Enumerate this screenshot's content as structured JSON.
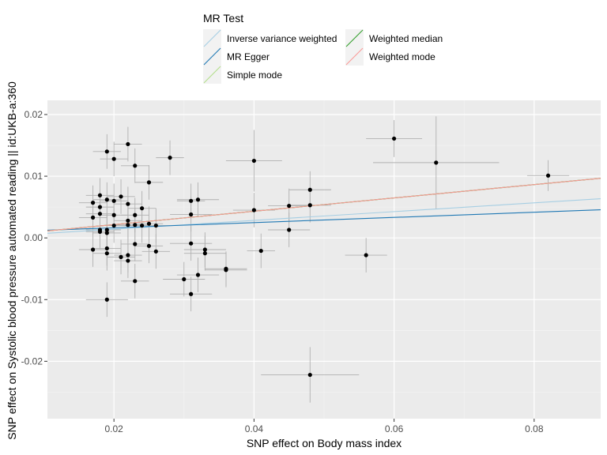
{
  "chart_data": {
    "type": "scatter",
    "xlabel": "SNP effect on Body mass index",
    "ylabel": "SNP effect on Systolic blood pressure  automated reading || id:UKB-a:360",
    "xlim": [
      0.0105,
      0.0895
    ],
    "ylim": [
      -0.0293,
      0.0223
    ],
    "xticks": [
      0.02,
      0.04,
      0.06,
      0.08
    ],
    "yticks": [
      -0.02,
      -0.01,
      0.0,
      0.01,
      0.02
    ],
    "xtick_labels": [
      "0.02",
      "0.04",
      "0.06",
      "0.08"
    ],
    "ytick_labels": [
      "-0.02",
      "-0.01",
      "0.00",
      "0.01",
      "0.02"
    ],
    "grid": true,
    "legend": {
      "title": "MR Test",
      "position": "top",
      "entries": [
        {
          "label": "Inverse variance weighted",
          "color": "#a6cee3"
        },
        {
          "label": "MR Egger",
          "color": "#1f78b4"
        },
        {
          "label": "Simple mode",
          "color": "#b2df8a"
        },
        {
          "label": "Weighted median",
          "color": "#33a02c"
        },
        {
          "label": "Weighted mode",
          "color": "#fb9a99"
        }
      ]
    },
    "lines": [
      {
        "name": "Inverse variance weighted",
        "color": "#a6cee3",
        "intercept": 0.0,
        "slope": 0.071
      },
      {
        "name": "MR Egger",
        "color": "#1f78b4",
        "intercept": 0.0008,
        "slope": 0.042
      },
      {
        "name": "Simple mode",
        "color": "#b2df8a",
        "intercept": 0.0,
        "slope": 0.108
      },
      {
        "name": "Weighted median",
        "color": "#33a02c",
        "intercept": 0.0,
        "slope": 0.108
      },
      {
        "name": "Weighted mode",
        "color": "#fb9a99",
        "intercept": 0.0,
        "slope": 0.108
      }
    ],
    "points": [
      {
        "x": 0.017,
        "y": 0.0057,
        "xerr": 0.002,
        "yerr": 0.0028
      },
      {
        "x": 0.017,
        "y": 0.0033,
        "xerr": 0.002,
        "yerr": 0.0028
      },
      {
        "x": 0.017,
        "y": -0.0019,
        "xerr": 0.002,
        "yerr": 0.0028
      },
      {
        "x": 0.018,
        "y": 0.0069,
        "xerr": 0.002,
        "yerr": 0.0028
      },
      {
        "x": 0.018,
        "y": 0.005,
        "xerr": 0.002,
        "yerr": 0.0028
      },
      {
        "x": 0.018,
        "y": 0.0039,
        "xerr": 0.002,
        "yerr": 0.0028
      },
      {
        "x": 0.018,
        "y": 0.0013,
        "xerr": 0.002,
        "yerr": 0.0028
      },
      {
        "x": 0.018,
        "y": 0.001,
        "xerr": 0.002,
        "yerr": 0.0028
      },
      {
        "x": 0.019,
        "y": 0.014,
        "xerr": 0.002,
        "yerr": 0.0028
      },
      {
        "x": 0.019,
        "y": 0.0062,
        "xerr": 0.002,
        "yerr": 0.0028
      },
      {
        "x": 0.019,
        "y": 0.0013,
        "xerr": 0.002,
        "yerr": 0.0028
      },
      {
        "x": 0.019,
        "y": 0.0008,
        "xerr": 0.002,
        "yerr": 0.0028
      },
      {
        "x": 0.019,
        "y": -0.0017,
        "xerr": 0.002,
        "yerr": 0.0028
      },
      {
        "x": 0.019,
        "y": -0.0025,
        "xerr": 0.002,
        "yerr": 0.0028
      },
      {
        "x": 0.019,
        "y": -0.01,
        "xerr": 0.003,
        "yerr": 0.0028
      },
      {
        "x": 0.02,
        "y": 0.0128,
        "xerr": 0.002,
        "yerr": 0.0028
      },
      {
        "x": 0.02,
        "y": 0.006,
        "xerr": 0.002,
        "yerr": 0.0028
      },
      {
        "x": 0.02,
        "y": 0.0037,
        "xerr": 0.002,
        "yerr": 0.0028
      },
      {
        "x": 0.02,
        "y": 0.002,
        "xerr": 0.002,
        "yerr": 0.0028
      },
      {
        "x": 0.021,
        "y": 0.0067,
        "xerr": 0.002,
        "yerr": 0.0028
      },
      {
        "x": 0.021,
        "y": -0.0031,
        "xerr": 0.002,
        "yerr": 0.0028
      },
      {
        "x": 0.022,
        "y": 0.0152,
        "xerr": 0.002,
        "yerr": 0.0028
      },
      {
        "x": 0.022,
        "y": 0.0055,
        "xerr": 0.002,
        "yerr": 0.0028
      },
      {
        "x": 0.022,
        "y": 0.0028,
        "xerr": 0.002,
        "yerr": 0.0028
      },
      {
        "x": 0.022,
        "y": 0.0021,
        "xerr": 0.002,
        "yerr": 0.0028
      },
      {
        "x": 0.022,
        "y": -0.0028,
        "xerr": 0.002,
        "yerr": 0.0028
      },
      {
        "x": 0.022,
        "y": -0.0037,
        "xerr": 0.002,
        "yerr": 0.0028
      },
      {
        "x": 0.023,
        "y": 0.0117,
        "xerr": 0.002,
        "yerr": 0.0028
      },
      {
        "x": 0.023,
        "y": 0.0037,
        "xerr": 0.002,
        "yerr": 0.0028
      },
      {
        "x": 0.023,
        "y": 0.0021,
        "xerr": 0.002,
        "yerr": 0.0028
      },
      {
        "x": 0.023,
        "y": -0.001,
        "xerr": 0.002,
        "yerr": 0.0028
      },
      {
        "x": 0.023,
        "y": -0.007,
        "xerr": 0.002,
        "yerr": 0.0028
      },
      {
        "x": 0.024,
        "y": 0.0048,
        "xerr": 0.002,
        "yerr": 0.0028
      },
      {
        "x": 0.024,
        "y": 0.002,
        "xerr": 0.002,
        "yerr": 0.0028
      },
      {
        "x": 0.025,
        "y": 0.009,
        "xerr": 0.002,
        "yerr": 0.0028
      },
      {
        "x": 0.025,
        "y": 0.0023,
        "xerr": 0.002,
        "yerr": 0.0028
      },
      {
        "x": 0.025,
        "y": -0.0013,
        "xerr": 0.002,
        "yerr": 0.0028
      },
      {
        "x": 0.026,
        "y": 0.002,
        "xerr": 0.002,
        "yerr": 0.0028
      },
      {
        "x": 0.026,
        "y": -0.0022,
        "xerr": 0.002,
        "yerr": 0.0028
      },
      {
        "x": 0.028,
        "y": 0.013,
        "xerr": 0.002,
        "yerr": 0.0028
      },
      {
        "x": 0.03,
        "y": -0.0067,
        "xerr": 0.003,
        "yerr": 0.0028
      },
      {
        "x": 0.031,
        "y": 0.006,
        "xerr": 0.002,
        "yerr": 0.0028
      },
      {
        "x": 0.031,
        "y": 0.0038,
        "xerr": 0.003,
        "yerr": 0.0028
      },
      {
        "x": 0.031,
        "y": -0.0009,
        "xerr": 0.003,
        "yerr": 0.0028
      },
      {
        "x": 0.031,
        "y": -0.0091,
        "xerr": 0.003,
        "yerr": 0.0028
      },
      {
        "x": 0.032,
        "y": 0.0062,
        "xerr": 0.003,
        "yerr": 0.0028
      },
      {
        "x": 0.032,
        "y": -0.006,
        "xerr": 0.003,
        "yerr": 0.0028
      },
      {
        "x": 0.033,
        "y": -0.0019,
        "xerr": 0.003,
        "yerr": 0.0028
      },
      {
        "x": 0.033,
        "y": -0.0025,
        "xerr": 0.003,
        "yerr": 0.0028
      },
      {
        "x": 0.036,
        "y": -0.005,
        "xerr": 0.003,
        "yerr": 0.0028
      },
      {
        "x": 0.036,
        "y": -0.0052,
        "xerr": 0.003,
        "yerr": 0.0028
      },
      {
        "x": 0.04,
        "y": 0.0125,
        "xerr": 0.004,
        "yerr": 0.005
      },
      {
        "x": 0.04,
        "y": 0.0045,
        "xerr": 0.003,
        "yerr": 0.0028
      },
      {
        "x": 0.041,
        "y": -0.0021,
        "xerr": 0.002,
        "yerr": 0.0028
      },
      {
        "x": 0.045,
        "y": 0.0052,
        "xerr": 0.003,
        "yerr": 0.0028
      },
      {
        "x": 0.045,
        "y": 0.0013,
        "xerr": 0.003,
        "yerr": 0.0028
      },
      {
        "x": 0.048,
        "y": 0.0078,
        "xerr": 0.003,
        "yerr": 0.003
      },
      {
        "x": 0.048,
        "y": 0.0053,
        "xerr": 0.003,
        "yerr": 0.0028
      },
      {
        "x": 0.048,
        "y": -0.0222,
        "xerr": 0.007,
        "yerr": 0.0045
      },
      {
        "x": 0.056,
        "y": -0.0028,
        "xerr": 0.003,
        "yerr": 0.0028
      },
      {
        "x": 0.06,
        "y": 0.0161,
        "xerr": 0.004,
        "yerr": 0.003
      },
      {
        "x": 0.066,
        "y": 0.0122,
        "xerr": 0.009,
        "yerr": 0.0075
      },
      {
        "x": 0.082,
        "y": 0.0101,
        "xerr": 0.003,
        "yerr": 0.0025
      }
    ]
  }
}
